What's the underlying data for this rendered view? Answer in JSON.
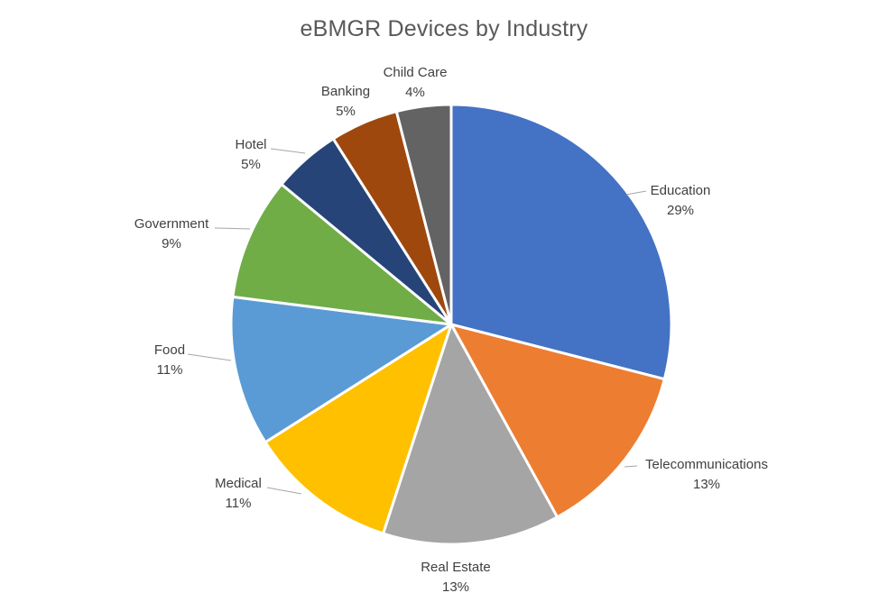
{
  "chart_data": {
    "type": "pie",
    "title": "eBMGR Devices by Industry",
    "slices": [
      {
        "label": "Education",
        "percent_label": "29%",
        "value": 29,
        "color": "#4472C4"
      },
      {
        "label": "Telecommunications",
        "percent_label": "13%",
        "value": 13,
        "color": "#ED7D31"
      },
      {
        "label": "Real Estate",
        "percent_label": "13%",
        "value": 13,
        "color": "#A5A5A5"
      },
      {
        "label": "Medical",
        "percent_label": "11%",
        "value": 11,
        "color": "#FFC000"
      },
      {
        "label": "Food",
        "percent_label": "11%",
        "value": 11,
        "color": "#5B9BD5"
      },
      {
        "label": "Government",
        "percent_label": "9%",
        "value": 9,
        "color": "#70AD47"
      },
      {
        "label": "Hotel",
        "percent_label": "5%",
        "value": 5,
        "color": "#264478"
      },
      {
        "label": "Banking",
        "percent_label": "5%",
        "value": 5,
        "color": "#9E480E"
      },
      {
        "label": "Child Care",
        "percent_label": "4%",
        "value": 4,
        "color": "#636363"
      }
    ],
    "start_angle_deg": 0,
    "direction": "clockwise",
    "legend": "none"
  }
}
